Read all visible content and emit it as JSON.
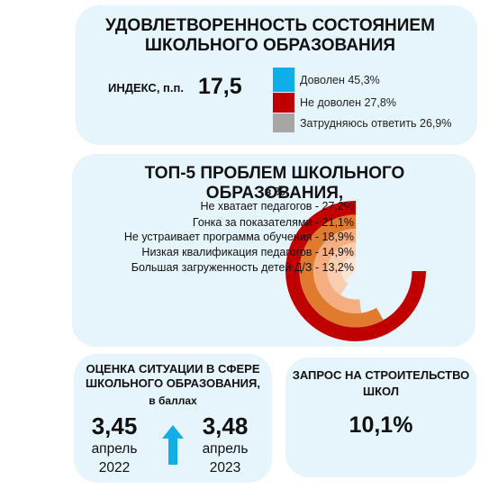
{
  "satisfaction": {
    "title_line1": "УДОВЛЕТВОРЕННОСТЬ СОСТОЯНИЕМ",
    "title_line2": "ШКОЛЬНОГО ОБРАЗОВАНИЯ",
    "index_label": "ИНДЕКС, п.п.",
    "index_value": "17,5",
    "legend": [
      {
        "label": "Доволен 45,3%",
        "color": "#10aee8"
      },
      {
        "label": "Не доволен 27,8%",
        "color": "#c00000"
      },
      {
        "label": "Затрудняюсь ответить 26,9%",
        "color": "#a6a6a6"
      }
    ]
  },
  "problems": {
    "title": "ТОП-5 ПРОБЛЕМ ШКОЛЬНОГО ОБРАЗОВАНИЯ,",
    "title_unit": "в %"
  },
  "chart_data": {
    "type": "radial_bar",
    "categories": [
      "Не хватает педагогов - 27,2%",
      "Гонка за показателями - 21,1%",
      "Не устраивает программа обучения - 18,9%",
      "Низкая квалификация педагогов - 14,9%",
      "Большая загруженность детей Д/З - 13,2%"
    ],
    "values": [
      27.2,
      21.1,
      18.9,
      14.9,
      13.2
    ],
    "colors": [
      "#c00000",
      "#e07a2e",
      "#f4ae80",
      "#f8cdb0",
      "#fbe3d3"
    ]
  },
  "assessment": {
    "title": "ОЦЕНКА СИТУАЦИИ В СФЕРЕ ШКОЛЬНОГО ОБРАЗОВАНИЯ,",
    "unit": "в баллах",
    "before": {
      "value": "3,45",
      "month": "апрель",
      "year": "2022"
    },
    "after": {
      "value": "3,48",
      "month": "апрель",
      "year": "2023"
    },
    "arrow_color": "#10aee8"
  },
  "construction": {
    "title": "ЗАПРОС НА СТРОИТЕЛЬСТВО ШКОЛ",
    "value": "10,1%"
  }
}
